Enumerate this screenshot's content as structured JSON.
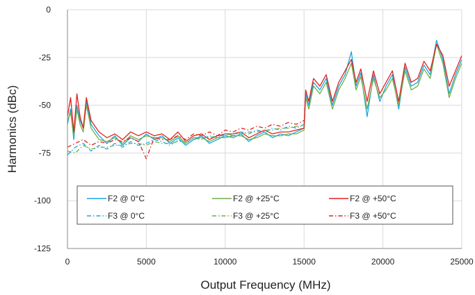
{
  "chart_data": {
    "type": "line",
    "title": "",
    "xlabel": "Output Frequency (MHz)",
    "ylabel": "Harmonics (dBc)",
    "xlim": [
      0,
      25000
    ],
    "ylim": [
      -125,
      0
    ],
    "x_ticks": [
      "0",
      "5000",
      "10000",
      "15000",
      "20000",
      "25000"
    ],
    "y_ticks": [
      "0",
      "-25",
      "-50",
      "-75",
      "-100",
      "-125"
    ],
    "grid": true,
    "legend_placement": "bottom-center",
    "series": [
      {
        "name": "F2 @ 0°C",
        "color": "#1aa7e0",
        "dash": "solid",
        "x": [
          0,
          200,
          400,
          600,
          800,
          1000,
          1200,
          1500,
          2000,
          2500,
          3000,
          3500,
          4000,
          4500,
          5000,
          5500,
          6000,
          6500,
          7000,
          7500,
          8000,
          8500,
          9000,
          9500,
          10000,
          10500,
          11000,
          11500,
          12000,
          12500,
          13000,
          13500,
          14000,
          14500,
          15000,
          15100,
          15300,
          15600,
          16000,
          16400,
          16800,
          17200,
          17600,
          18000,
          18300,
          18600,
          19000,
          19400,
          19800,
          20200,
          20600,
          21000,
          21400,
          21800,
          22200,
          22600,
          23000,
          23400,
          23800,
          24200,
          24600,
          25000
        ],
        "y": [
          -60,
          -52,
          -68,
          -50,
          -58,
          -62,
          -48,
          -60,
          -66,
          -70,
          -66,
          -71,
          -67,
          -69,
          -65,
          -68,
          -66,
          -70,
          -67,
          -71,
          -68,
          -66,
          -70,
          -68,
          -66,
          -67,
          -65,
          -69,
          -66,
          -64,
          -67,
          -65,
          -66,
          -64,
          -62,
          -44,
          -50,
          -38,
          -42,
          -36,
          -50,
          -40,
          -34,
          -22,
          -40,
          -33,
          -56,
          -34,
          -48,
          -40,
          -34,
          -52,
          -30,
          -40,
          -38,
          -29,
          -34,
          -16,
          -26,
          -44,
          -34,
          -26
        ]
      },
      {
        "name": "F2 @ +25°C",
        "color": "#70ad47",
        "dash": "solid",
        "x": [
          0,
          200,
          400,
          600,
          800,
          1000,
          1200,
          1500,
          2000,
          2500,
          3000,
          3500,
          4000,
          4500,
          5000,
          5500,
          6000,
          6500,
          7000,
          7500,
          8000,
          8500,
          9000,
          9500,
          10000,
          10500,
          11000,
          11500,
          12000,
          12500,
          13000,
          13500,
          14000,
          14500,
          15000,
          15100,
          15300,
          15600,
          16000,
          16400,
          16800,
          17200,
          17600,
          18000,
          18300,
          18600,
          19000,
          19400,
          19800,
          20200,
          20600,
          21000,
          21400,
          21800,
          22200,
          22600,
          23000,
          23400,
          23800,
          24200,
          24600,
          25000
        ],
        "y": [
          -58,
          -54,
          -66,
          -52,
          -60,
          -64,
          -50,
          -62,
          -68,
          -69,
          -67,
          -70,
          -66,
          -68,
          -66,
          -67,
          -67,
          -69,
          -66,
          -70,
          -67,
          -67,
          -69,
          -67,
          -67,
          -66,
          -66,
          -68,
          -67,
          -65,
          -66,
          -66,
          -65,
          -65,
          -63,
          -46,
          -52,
          -40,
          -44,
          -38,
          -52,
          -42,
          -36,
          -28,
          -42,
          -35,
          -52,
          -36,
          -46,
          -42,
          -36,
          -50,
          -32,
          -42,
          -40,
          -31,
          -36,
          -18,
          -28,
          -46,
          -36,
          -28
        ]
      },
      {
        "name": "F2 @ +50°C",
        "color": "#e02020",
        "dash": "solid",
        "x": [
          0,
          200,
          400,
          600,
          800,
          1000,
          1200,
          1500,
          2000,
          2500,
          3000,
          3500,
          4000,
          4500,
          5000,
          5500,
          6000,
          6500,
          7000,
          7500,
          8000,
          8500,
          9000,
          9500,
          10000,
          10500,
          11000,
          11500,
          12000,
          12500,
          13000,
          13500,
          14000,
          14500,
          15000,
          15100,
          15300,
          15600,
          16000,
          16400,
          16800,
          17200,
          17600,
          18000,
          18300,
          18600,
          19000,
          19400,
          19800,
          20200,
          20600,
          21000,
          21400,
          21800,
          22200,
          22600,
          23000,
          23400,
          23800,
          24200,
          24600,
          25000
        ],
        "y": [
          -56,
          -46,
          -64,
          -44,
          -56,
          -62,
          -46,
          -58,
          -64,
          -67,
          -65,
          -68,
          -64,
          -66,
          -64,
          -66,
          -65,
          -68,
          -64,
          -69,
          -66,
          -65,
          -68,
          -66,
          -65,
          -65,
          -64,
          -67,
          -65,
          -63,
          -65,
          -64,
          -64,
          -63,
          -62,
          -42,
          -48,
          -36,
          -40,
          -34,
          -48,
          -38,
          -32,
          -26,
          -38,
          -31,
          -48,
          -32,
          -44,
          -38,
          -32,
          -48,
          -28,
          -38,
          -36,
          -27,
          -32,
          -18,
          -24,
          -40,
          -32,
          -24
        ]
      },
      {
        "name": "F3 @ 0°C",
        "color": "#1aa7e0",
        "dash": "dashdot",
        "x": [
          0,
          500,
          1000,
          1500,
          2000,
          2500,
          3000,
          3500,
          4000,
          4500,
          5000,
          5500,
          6000,
          6500,
          7000,
          7500,
          8000,
          8500,
          9000,
          9500,
          10000,
          10500,
          11000,
          11500,
          12000,
          12500,
          13000,
          13500,
          14000,
          14500,
          15000
        ],
        "y": [
          -76,
          -72,
          -70,
          -74,
          -71,
          -73,
          -70,
          -72,
          -69,
          -71,
          -70,
          -68,
          -69,
          -71,
          -68,
          -70,
          -67,
          -68,
          -66,
          -67,
          -65,
          -66,
          -64,
          -65,
          -63,
          -64,
          -62,
          -63,
          -61,
          -62,
          -60
        ]
      },
      {
        "name": "F3 @ +25°C",
        "color": "#70ad47",
        "dash": "dashdot",
        "x": [
          0,
          500,
          1000,
          1500,
          2000,
          2500,
          3000,
          3500,
          4000,
          4500,
          5000,
          5500,
          6000,
          6500,
          7000,
          7500,
          8000,
          8500,
          9000,
          9500,
          10000,
          10500,
          11000,
          11500,
          12000,
          12500,
          13000,
          13500,
          14000,
          14500,
          15000
        ],
        "y": [
          -74,
          -75,
          -71,
          -73,
          -72,
          -72,
          -71,
          -71,
          -70,
          -70,
          -71,
          -69,
          -70,
          -70,
          -69,
          -69,
          -68,
          -67,
          -67,
          -66,
          -66,
          -65,
          -65,
          -64,
          -64,
          -63,
          -63,
          -62,
          -62,
          -61,
          -61
        ]
      },
      {
        "name": "F3 @ +50°C",
        "color": "#e02020",
        "dash": "dashdot",
        "x": [
          0,
          500,
          1000,
          1500,
          2000,
          2500,
          3000,
          3500,
          4000,
          4500,
          5000,
          5500,
          6000,
          6500,
          7000,
          7500,
          8000,
          8500,
          9000,
          9500,
          10000,
          10500,
          11000,
          11500,
          12000,
          12500,
          13000,
          13500,
          14000,
          14500,
          15000
        ],
        "y": [
          -72,
          -70,
          -68,
          -71,
          -69,
          -70,
          -68,
          -69,
          -67,
          -69,
          -78,
          -67,
          -68,
          -68,
          -66,
          -68,
          -65,
          -66,
          -64,
          -66,
          -63,
          -64,
          -62,
          -63,
          -61,
          -62,
          -60,
          -61,
          -59,
          -60,
          -58
        ]
      }
    ]
  }
}
